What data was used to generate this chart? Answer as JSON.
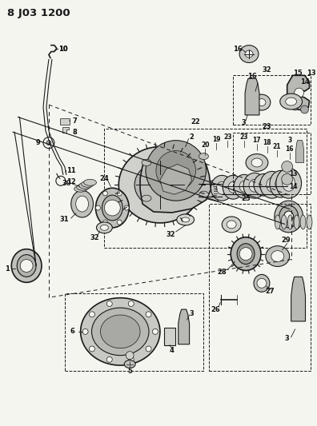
{
  "title": "8 J03 1200",
  "title_fontsize": 10,
  "title_fontweight": "bold",
  "bg_color": "#f5f5f0",
  "line_color": "#1a1a1a",
  "label_color": "#111111",
  "figsize": [
    3.96,
    5.33
  ],
  "dpi": 100
}
